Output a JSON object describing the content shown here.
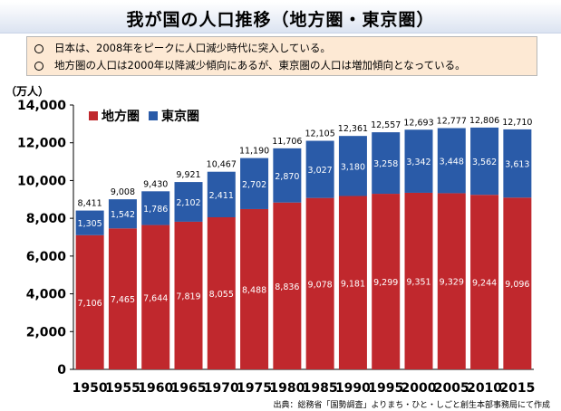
{
  "title": "我が国の人口推移（地方圏・東京圏）",
  "notes": [
    "日本は、2008年をピークに人口減少時代に突入している。",
    "地方圏の人口は2000年以降減少傾向にあるが、東京圏の人口は増加傾向となっている。"
  ],
  "unit_label": "（万人）",
  "source": "出典：総務省「国勢調査」よりまち・ひと・しごと創生本部事務局にて作成",
  "colors": {
    "local": "#c0282d",
    "tokyo": "#2a5ba8"
  },
  "chart_data": {
    "type": "bar",
    "stacked": true,
    "categories": [
      "1950",
      "1955",
      "1960",
      "1965",
      "1970",
      "1975",
      "1980",
      "1985",
      "1990",
      "1995",
      "2000",
      "2005",
      "2010",
      "2015"
    ],
    "series": [
      {
        "name": "地方圏",
        "values": [
          7106,
          7465,
          7644,
          7819,
          8055,
          8488,
          8836,
          9078,
          9181,
          9299,
          9351,
          9329,
          9244,
          9096
        ]
      },
      {
        "name": "東京圏",
        "values": [
          1305,
          1542,
          1786,
          2102,
          2411,
          2702,
          2870,
          3027,
          3180,
          3258,
          3342,
          3448,
          3562,
          3613
        ]
      }
    ],
    "totals": [
      8411,
      9008,
      9430,
      9921,
      10467,
      11190,
      11706,
      12105,
      12361,
      12557,
      12693,
      12777,
      12806,
      12710
    ],
    "ylim": [
      0,
      14000
    ],
    "yticks": [
      "0",
      "2,000",
      "4,000",
      "6,000",
      "8,000",
      "10,000",
      "12,000",
      "14,000"
    ],
    "legend_position": "top-left",
    "grid": false
  }
}
